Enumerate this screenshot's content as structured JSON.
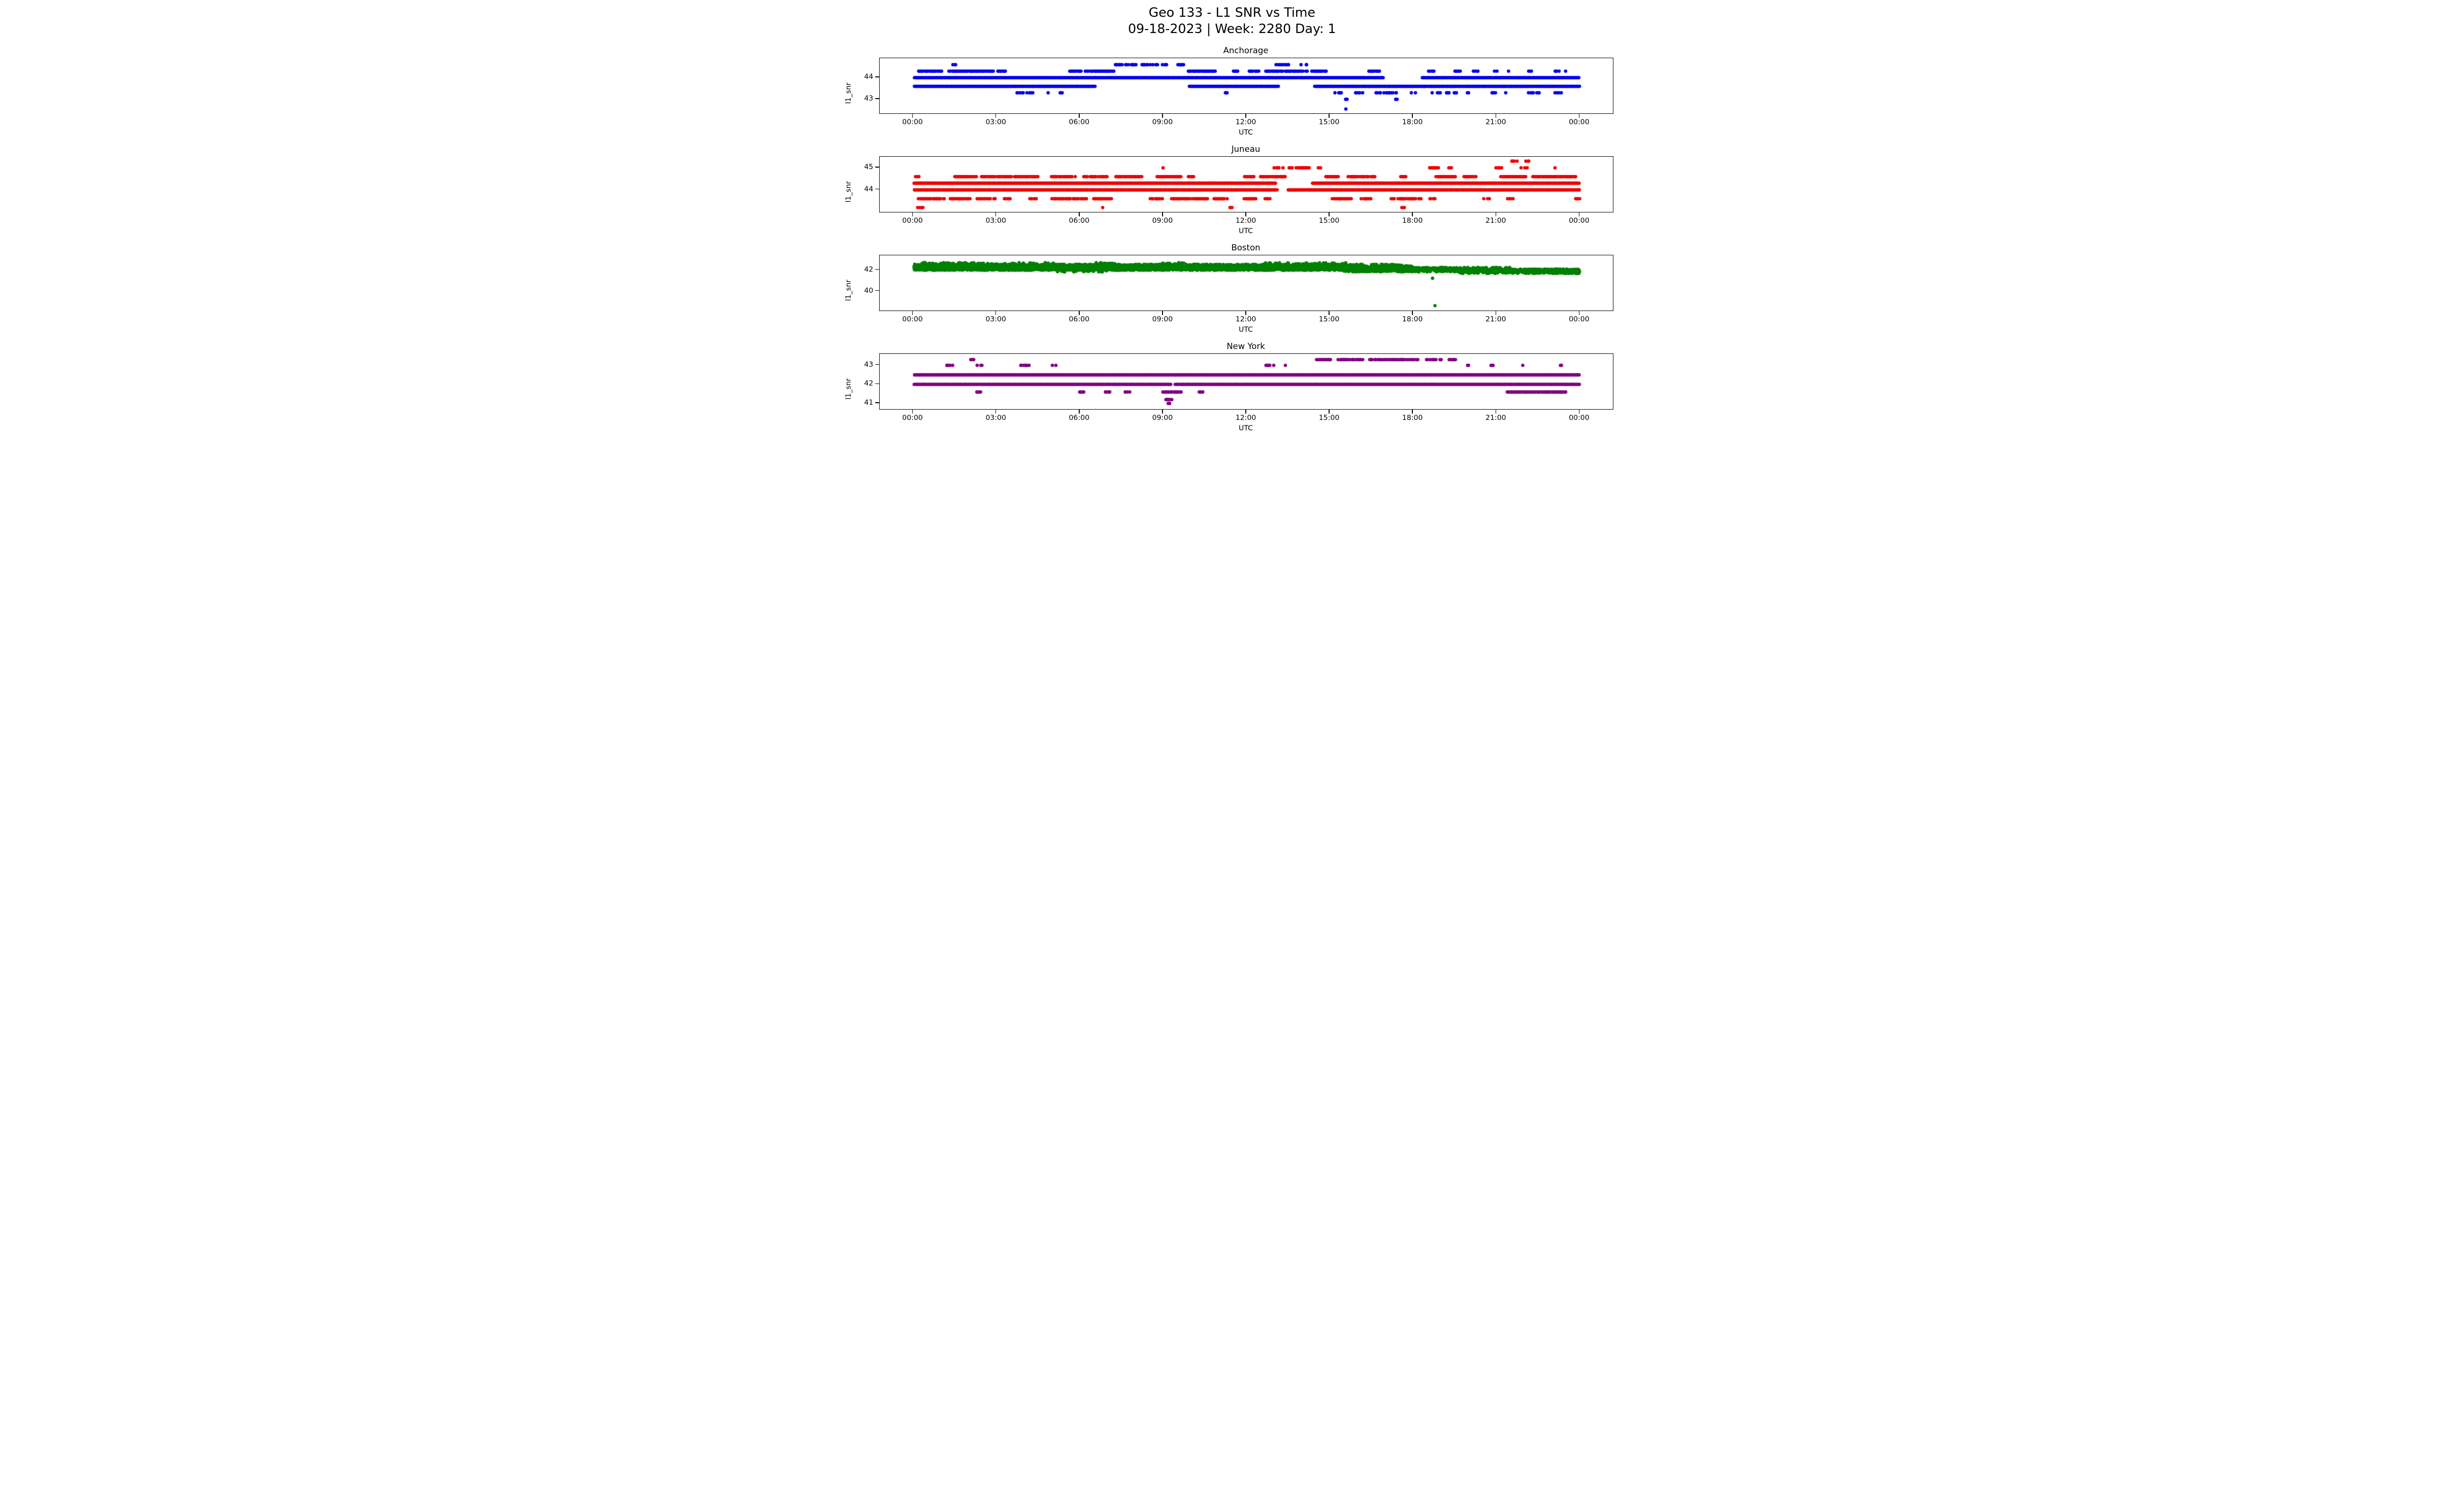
{
  "figure": {
    "title_line1": "Geo 133 - L1 SNR vs Time",
    "title_line2": "09-18-2023 | Week: 2280 Day: 1"
  },
  "chart_data": [
    {
      "type": "scatter",
      "title": "Anchorage",
      "color": "#0000ee",
      "ylabel": "l1_snr",
      "xlabel": "UTC",
      "xlim_hours": [
        -1.2,
        25.2
      ],
      "ylim": [
        42.35,
        44.9
      ],
      "yticks": [
        43,
        44
      ],
      "x_ticks": {
        "hours": [
          0,
          3,
          6,
          9,
          12,
          15,
          18,
          21,
          24
        ],
        "labels": [
          "00:00",
          "03:00",
          "06:00",
          "09:00",
          "12:00",
          "15:00",
          "18:00",
          "21:00",
          "00:00"
        ]
      },
      "levels": [
        {
          "y": 44.6,
          "density": 0.6,
          "segments": [
            [
              1.45,
              1.55
            ],
            [
              7.3,
              8.05
            ],
            [
              8.15,
              9.15
            ],
            [
              9.55,
              9.75
            ],
            [
              13.05,
              13.6
            ],
            [
              13.95,
              14.2
            ]
          ]
        },
        {
          "y": 44.3,
          "density": 0.85,
          "segments": [
            [
              0.2,
              1.05
            ],
            [
              1.3,
              2.95
            ],
            [
              3.05,
              3.35
            ],
            [
              5.65,
              6.05
            ],
            [
              6.2,
              7.25
            ],
            [
              9.9,
              10.9
            ],
            [
              11.55,
              11.75
            ],
            [
              12.1,
              12.45
            ],
            [
              12.7,
              14.2
            ],
            [
              14.35,
              14.9
            ],
            [
              16.4,
              16.8
            ],
            [
              18.55,
              18.75,
              0.35
            ],
            [
              19.5,
              19.7,
              0.35
            ],
            [
              20.15,
              20.35,
              0.35
            ],
            [
              20.85,
              21.05,
              0.35
            ],
            [
              21.35,
              21.55,
              0.35
            ],
            [
              22.15,
              22.35,
              0.35
            ],
            [
              23.1,
              23.3,
              0.35
            ],
            [
              23.5,
              23.65,
              0.35
            ]
          ]
        },
        {
          "y": 44.0,
          "density": 1,
          "segments": [
            [
              0.05,
              16.95
            ],
            [
              18.35,
              24.0
            ]
          ]
        },
        {
          "y": 43.6,
          "density": 1,
          "segments": [
            [
              0.05,
              6.55
            ],
            [
              9.95,
              13.15
            ],
            [
              14.45,
              24.0
            ]
          ]
        },
        {
          "y": 43.3,
          "density": 0.4,
          "segments": [
            [
              3.75,
              4.0
            ],
            [
              4.1,
              4.35
            ],
            [
              4.85,
              5.0
            ],
            [
              5.3,
              5.45
            ],
            [
              11.25,
              11.35
            ],
            [
              15.15,
              15.45
            ],
            [
              15.95,
              16.25
            ],
            [
              16.6,
              17.45
            ],
            [
              17.95,
              18.1
            ],
            [
              18.7,
              19.0
            ],
            [
              19.2,
              19.6
            ],
            [
              19.95,
              20.1
            ],
            [
              20.85,
              21.0
            ],
            [
              21.3,
              21.45
            ],
            [
              22.15,
              22.55
            ],
            [
              23.0,
              23.35
            ]
          ]
        },
        {
          "y": 43.0,
          "density": 0.6,
          "segments": [
            [
              15.55,
              15.65
            ],
            [
              17.35,
              17.45
            ]
          ]
        },
        {
          "y": 42.55,
          "density": 1,
          "segments": [
            [
              15.6,
              15.62
            ]
          ]
        }
      ]
    },
    {
      "type": "scatter",
      "title": "Juneau",
      "color": "#ee0000",
      "ylabel": "l1_snr",
      "xlabel": "UTC",
      "xlim_hours": [
        -1.2,
        25.2
      ],
      "ylim": [
        43.0,
        45.5
      ],
      "yticks": [
        44,
        45
      ],
      "x_ticks": {
        "hours": [
          0,
          3,
          6,
          9,
          12,
          15,
          18,
          21,
          24
        ],
        "labels": [
          "00:00",
          "03:00",
          "06:00",
          "09:00",
          "12:00",
          "15:00",
          "18:00",
          "21:00",
          "00:00"
        ]
      },
      "levels": [
        {
          "y": 45.3,
          "density": 0.5,
          "segments": [
            [
              21.55,
              21.75
            ],
            [
              22.05,
              22.25
            ]
          ]
        },
        {
          "y": 45.0,
          "density": 0.5,
          "segments": [
            [
              8.95,
              9.05
            ],
            [
              13.0,
              13.35
            ],
            [
              13.5,
              14.35
            ],
            [
              14.55,
              14.7
            ],
            [
              18.6,
              18.95
            ],
            [
              19.3,
              19.45
            ],
            [
              21.0,
              21.3
            ],
            [
              21.9,
              22.15
            ],
            [
              23.05,
              23.15
            ]
          ]
        },
        {
          "y": 44.6,
          "density": 0.8,
          "segments": [
            [
              0.1,
              0.25
            ],
            [
              1.5,
              2.3
            ],
            [
              2.45,
              4.5
            ],
            [
              5.0,
              5.85
            ],
            [
              6.15,
              7.0
            ],
            [
              7.3,
              8.25
            ],
            [
              8.8,
              9.65
            ],
            [
              9.9,
              10.1
            ],
            [
              11.95,
              12.3
            ],
            [
              12.5,
              13.4
            ],
            [
              14.85,
              15.35
            ],
            [
              15.6,
              16.65
            ],
            [
              17.55,
              17.8
            ],
            [
              18.8,
              19.55
            ],
            [
              19.8,
              20.3
            ],
            [
              21.15,
              22.1
            ],
            [
              22.3,
              23.9
            ]
          ]
        },
        {
          "y": 44.3,
          "density": 1,
          "segments": [
            [
              0.05,
              13.05
            ],
            [
              14.4,
              24.0
            ]
          ]
        },
        {
          "y": 44.0,
          "density": 1,
          "segments": [
            [
              0.05,
              13.1
            ],
            [
              13.5,
              24.0
            ]
          ]
        },
        {
          "y": 43.6,
          "density": 0.7,
          "segments": [
            [
              0.2,
              1.15
            ],
            [
              1.35,
              2.1
            ],
            [
              2.3,
              3.0
            ],
            [
              3.3,
              3.5
            ],
            [
              4.2,
              4.45
            ],
            [
              5.0,
              6.25
            ],
            [
              6.5,
              7.15
            ],
            [
              8.55,
              9.0
            ],
            [
              9.3,
              10.6
            ],
            [
              10.85,
              11.3
            ],
            [
              11.9,
              12.4
            ],
            [
              12.65,
              12.9
            ],
            [
              15.1,
              15.8
            ],
            [
              16.15,
              16.5
            ],
            [
              17.2,
              18.3
            ],
            [
              18.6,
              18.8
            ],
            [
              20.55,
              20.75
            ],
            [
              21.4,
              21.6
            ],
            [
              23.85,
              24.0
            ]
          ]
        },
        {
          "y": 43.2,
          "density": 0.6,
          "segments": [
            [
              0.15,
              0.35
            ],
            [
              6.8,
              6.9
            ],
            [
              11.4,
              11.5
            ],
            [
              17.6,
              17.7
            ]
          ]
        }
      ]
    },
    {
      "type": "scatter",
      "title": "Boston",
      "color": "#008000",
      "ylabel": "l1_snr",
      "xlabel": "UTC",
      "xlim_hours": [
        -1.2,
        25.2
      ],
      "ylim": [
        38.2,
        43.4
      ],
      "yticks": [
        40,
        42
      ],
      "jitter": 0.06,
      "x_ticks": {
        "hours": [
          0,
          3,
          6,
          9,
          12,
          15,
          18,
          21,
          24
        ],
        "labels": [
          "00:00",
          "03:00",
          "06:00",
          "09:00",
          "12:00",
          "15:00",
          "18:00",
          "21:00",
          "00:00"
        ]
      },
      "levels": [
        {
          "y": 42.65,
          "density": 0.35,
          "segments": [
            [
              0.3,
              3.0
            ],
            [
              3.3,
              5.2
            ],
            [
              6.6,
              7.3
            ],
            [
              8.9,
              9.8
            ],
            [
              12.6,
              13.2
            ],
            [
              13.5,
              15.6
            ]
          ]
        },
        {
          "y": 42.5,
          "density": 0.8,
          "segments": [
            [
              0.05,
              16.2
            ],
            [
              16.5,
              17.6,
              0.4
            ]
          ]
        },
        {
          "y": 42.35,
          "density": 0.9,
          "segments": [
            [
              0.05,
              18.0
            ]
          ]
        },
        {
          "y": 42.2,
          "density": 0.9,
          "segments": [
            [
              0.05,
              19.5
            ],
            [
              19.5,
              21.5,
              0.5
            ]
          ]
        },
        {
          "y": 42.05,
          "density": 1,
          "segments": [
            [
              0.05,
              24.0
            ]
          ]
        },
        {
          "y": 41.9,
          "density": 0.6,
          "segments": [
            [
              15.5,
              24.0
            ],
            [
              5.2,
              7.0,
              0.3
            ]
          ]
        },
        {
          "y": 41.75,
          "density": 0.5,
          "segments": [
            [
              19.6,
              24.0
            ],
            [
              23.0,
              24.0,
              0.9
            ]
          ]
        },
        {
          "y": 41.3,
          "density": 1,
          "segments": [
            [
              18.72,
              18.74
            ]
          ]
        },
        {
          "y": 38.7,
          "density": 1,
          "segments": [
            [
              18.78,
              18.8
            ]
          ]
        }
      ]
    },
    {
      "type": "scatter",
      "title": "New York",
      "color": "#800080",
      "ylabel": "l1_snr",
      "xlabel": "UTC",
      "xlim_hours": [
        -1.2,
        25.2
      ],
      "ylim": [
        40.7,
        43.6
      ],
      "yticks": [
        41,
        42,
        43
      ],
      "x_ticks": {
        "hours": [
          0,
          3,
          6,
          9,
          12,
          15,
          18,
          21,
          24
        ],
        "labels": [
          "00:00",
          "03:00",
          "06:00",
          "09:00",
          "12:00",
          "15:00",
          "18:00",
          "21:00",
          "00:00"
        ]
      },
      "levels": [
        {
          "y": 43.3,
          "density": 0.7,
          "segments": [
            [
              2.05,
              2.2
            ],
            [
              14.5,
              15.05
            ],
            [
              15.3,
              16.2
            ],
            [
              16.45,
              18.2
            ],
            [
              18.5,
              19.05
            ],
            [
              19.3,
              19.55
            ]
          ]
        },
        {
          "y": 43.0,
          "density": 0.4,
          "segments": [
            [
              1.15,
              1.45
            ],
            [
              2.3,
              2.6
            ],
            [
              3.85,
              4.2
            ],
            [
              5.0,
              5.15
            ],
            [
              12.65,
              13.0
            ],
            [
              13.3,
              13.5
            ],
            [
              19.9,
              20.05
            ],
            [
              20.8,
              20.95
            ],
            [
              21.9,
              22.0
            ],
            [
              23.3,
              23.4
            ]
          ]
        },
        {
          "y": 42.5,
          "density": 1,
          "segments": [
            [
              0.05,
              24.0
            ]
          ]
        },
        {
          "y": 42.0,
          "density": 1,
          "segments": [
            [
              0.05,
              9.3
            ],
            [
              9.45,
              24.0
            ]
          ]
        },
        {
          "y": 41.6,
          "density": 0.6,
          "segments": [
            [
              2.25,
              2.45
            ],
            [
              6.0,
              6.3
            ],
            [
              6.9,
              7.15
            ],
            [
              7.6,
              7.85
            ],
            [
              9.0,
              9.65
            ],
            [
              10.3,
              10.45
            ],
            [
              21.4,
              23.5,
              0.85
            ]
          ]
        },
        {
          "y": 41.2,
          "density": 0.7,
          "segments": [
            [
              9.1,
              9.35
            ]
          ]
        },
        {
          "y": 41.0,
          "density": 1,
          "segments": [
            [
              9.18,
              9.25
            ]
          ]
        }
      ]
    }
  ]
}
